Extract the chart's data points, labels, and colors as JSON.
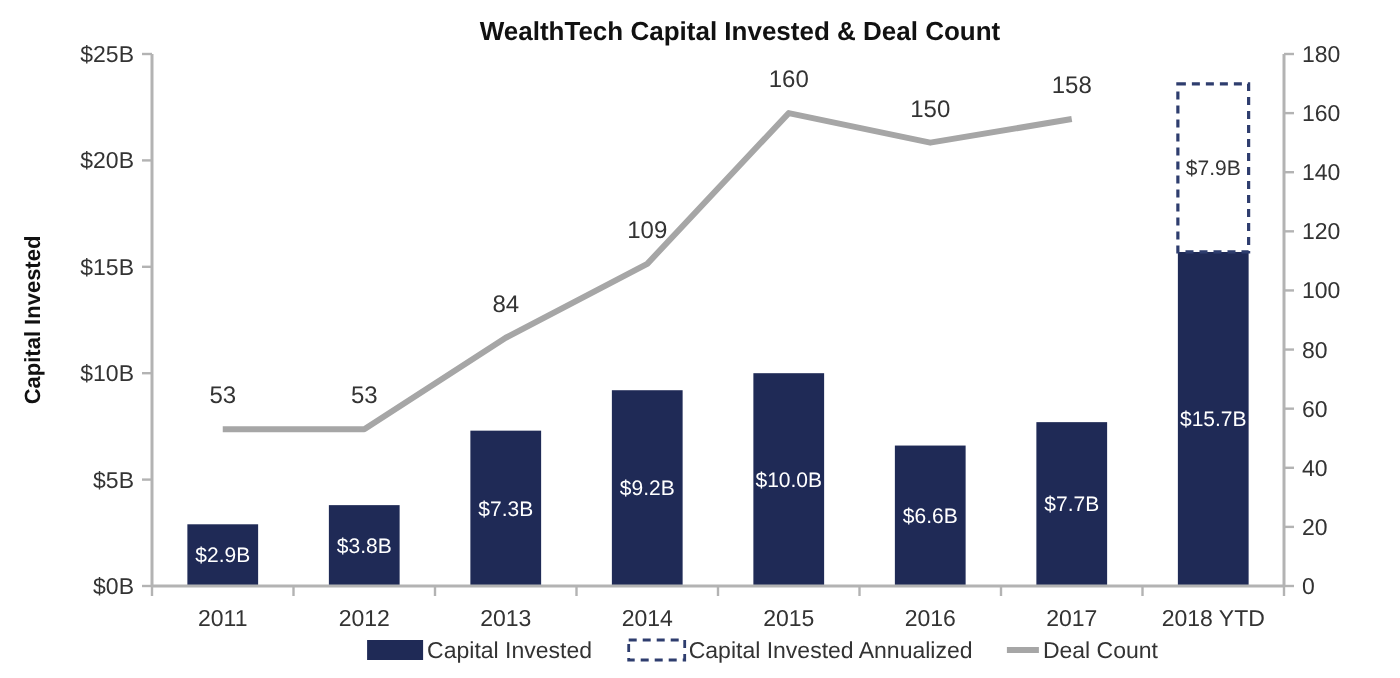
{
  "chart_data": {
    "type": "bar",
    "title": "WealthTech Capital Invested & Deal Count",
    "ylabel": "Capital Invested",
    "categories": [
      "2011",
      "2012",
      "2013",
      "2014",
      "2015",
      "2016",
      "2017",
      "2018 YTD"
    ],
    "series": [
      {
        "name": "Capital Invested",
        "color": "#1f2a56",
        "values": [
          2.9,
          3.8,
          7.3,
          9.2,
          10.0,
          6.6,
          7.7,
          15.7
        ],
        "value_labels": [
          "$2.9B",
          "$3.8B",
          "$7.3B",
          "$9.2B",
          "$10.0B",
          "$6.6B",
          "$7.7B",
          "$15.7B"
        ]
      },
      {
        "name": "Capital Invested Annualized",
        "color": "#2e3d6e",
        "line_style": "dashed",
        "values": [
          null,
          null,
          null,
          null,
          null,
          null,
          null,
          7.9
        ],
        "value_labels": [
          null,
          null,
          null,
          null,
          null,
          null,
          null,
          "$7.9B"
        ]
      },
      {
        "name": "Deal Count",
        "type": "line",
        "axis": "y2",
        "color": "#a6a6a6",
        "values": [
          53,
          53,
          84,
          109,
          160,
          150,
          158,
          null
        ],
        "value_labels": [
          "53",
          "53",
          "84",
          "109",
          "160",
          "150",
          "158",
          null
        ]
      }
    ],
    "stacked": true,
    "ylim": [
      0,
      25
    ],
    "yticks": [
      {
        "value": 0,
        "label": "$0B"
      },
      {
        "value": 5,
        "label": "$5B"
      },
      {
        "value": 10,
        "label": "$10B"
      },
      {
        "value": 15,
        "label": "$15B"
      },
      {
        "value": 20,
        "label": "$20B"
      },
      {
        "value": 25,
        "label": "$25B"
      }
    ],
    "y2lim": [
      0,
      180
    ],
    "y2ticks": [
      0,
      20,
      40,
      60,
      80,
      100,
      120,
      140,
      160,
      180
    ],
    "legend": "bottom",
    "marker": "none",
    "grid": false
  }
}
